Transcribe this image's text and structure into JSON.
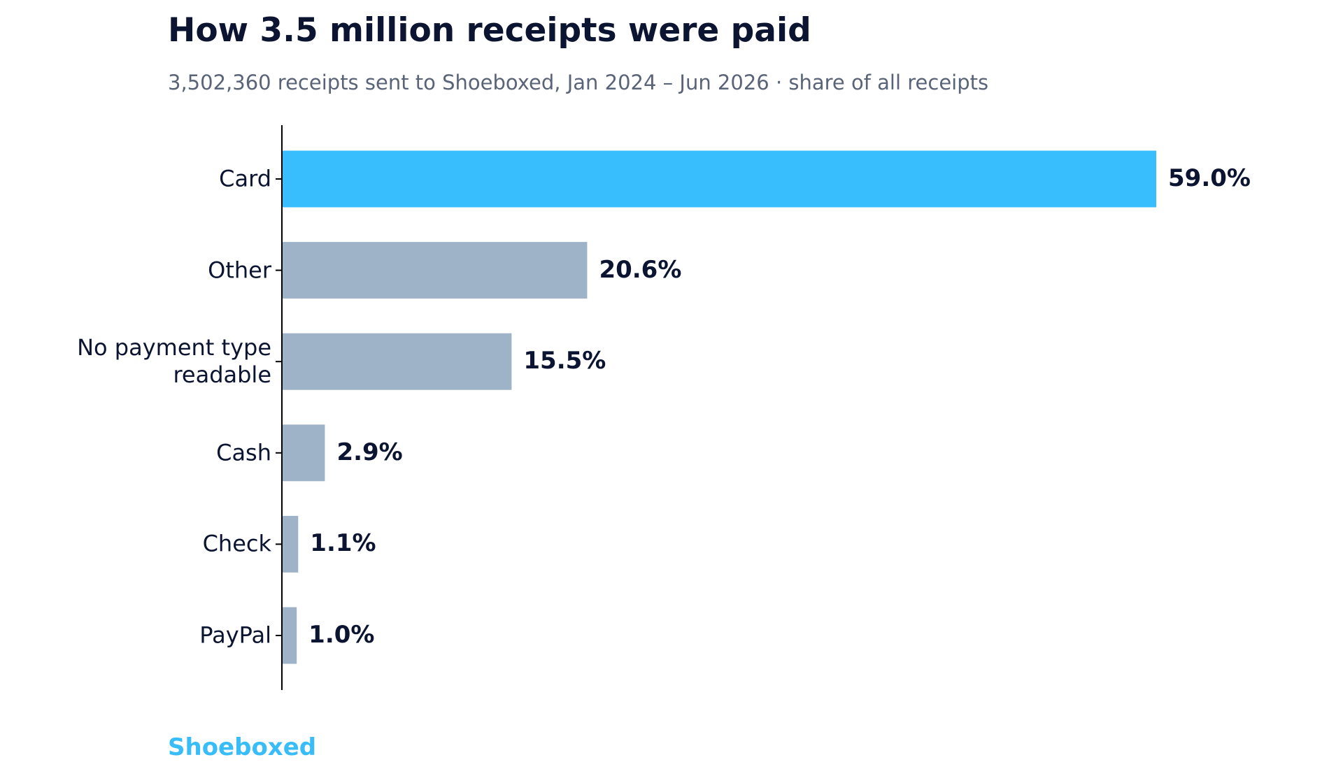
{
  "chart_data": {
    "type": "barh",
    "title": "How 3.5 million receipts were paid",
    "subtitle": "3,502,360 receipts sent to Shoeboxed, Jan 2024 – Jun 2026 · share of all receipts",
    "categories": [
      "Card",
      "Other",
      "No payment type readable",
      "Cash",
      "Check",
      "PayPal"
    ],
    "values": [
      59.0,
      20.6,
      15.5,
      2.9,
      1.1,
      1.0
    ],
    "value_labels": [
      "59.0%",
      "20.6%",
      "15.5%",
      "2.9%",
      "1.1%",
      "1.0%"
    ],
    "colors": [
      "#38bdfd",
      "#9fb3c8",
      "#9fb3c8",
      "#9fb3c8",
      "#9fb3c8",
      "#9fb3c8"
    ],
    "brand": "Shoeboxed"
  }
}
